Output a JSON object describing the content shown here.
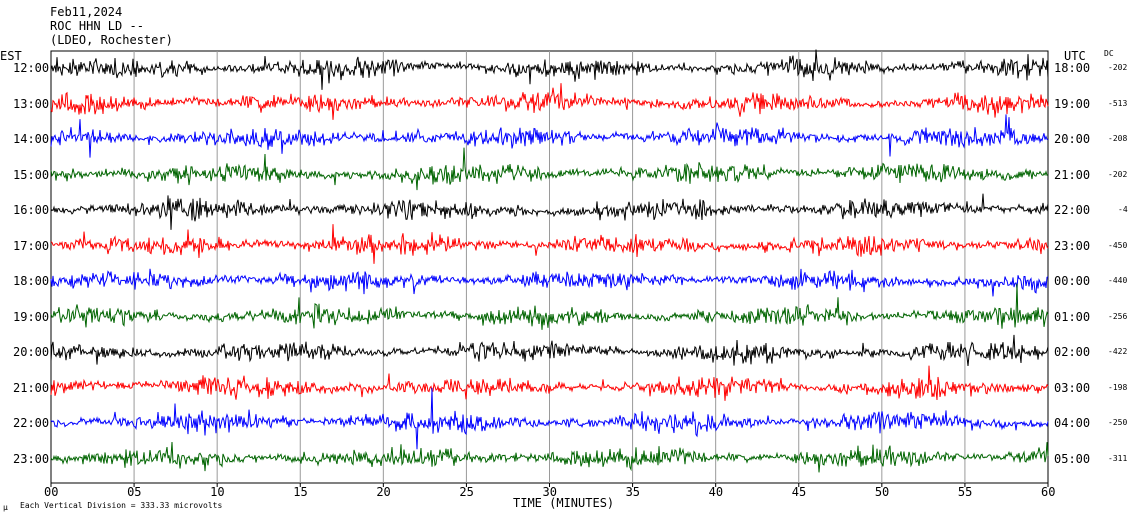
{
  "header": {
    "date": "Feb11,2024",
    "station": "ROC HHN LD --",
    "network": "(LDEO, Rochester)"
  },
  "labels": {
    "left_timezone": "EST",
    "right_timezone": "UTC",
    "dc_header": "DC",
    "xlabel": "TIME (MINUTES)",
    "scale_note": "Each Vertical Division =  333.33 microvolts",
    "corner_mark": "µ"
  },
  "chart_data": {
    "type": "line",
    "title": "Feb11,2024",
    "xlabel": "TIME (MINUTES)",
    "ylabel": "",
    "xlim": [
      0,
      60
    ],
    "x_ticks": [
      "00",
      "05",
      "10",
      "15",
      "20",
      "25",
      "30",
      "35",
      "40",
      "45",
      "50",
      "55",
      "60"
    ],
    "grid": true,
    "series_colors": [
      "#000000",
      "#ff0000",
      "#0000ff",
      "#006400"
    ],
    "rows": [
      {
        "est": "12:00",
        "utc": "18:00",
        "dc": "-202",
        "color": "#000000"
      },
      {
        "est": "13:00",
        "utc": "19:00",
        "dc": "-513",
        "color": "#ff0000"
      },
      {
        "est": "14:00",
        "utc": "20:00",
        "dc": "-208",
        "color": "#0000ff"
      },
      {
        "est": "15:00",
        "utc": "21:00",
        "dc": "-202",
        "color": "#006400"
      },
      {
        "est": "16:00",
        "utc": "22:00",
        "dc": "-4",
        "color": "#000000"
      },
      {
        "est": "17:00",
        "utc": "23:00",
        "dc": "-450",
        "color": "#ff0000"
      },
      {
        "est": "18:00",
        "utc": "00:00",
        "dc": "-440",
        "color": "#0000ff"
      },
      {
        "est": "19:00",
        "utc": "01:00",
        "dc": "-256",
        "color": "#006400"
      },
      {
        "est": "20:00",
        "utc": "02:00",
        "dc": "-422",
        "color": "#000000"
      },
      {
        "est": "21:00",
        "utc": "03:00",
        "dc": "-198",
        "color": "#ff0000"
      },
      {
        "est": "22:00",
        "utc": "04:00",
        "dc": "-250",
        "color": "#0000ff"
      },
      {
        "est": "23:00",
        "utc": "05:00",
        "dc": "-311",
        "color": "#006400"
      }
    ]
  }
}
